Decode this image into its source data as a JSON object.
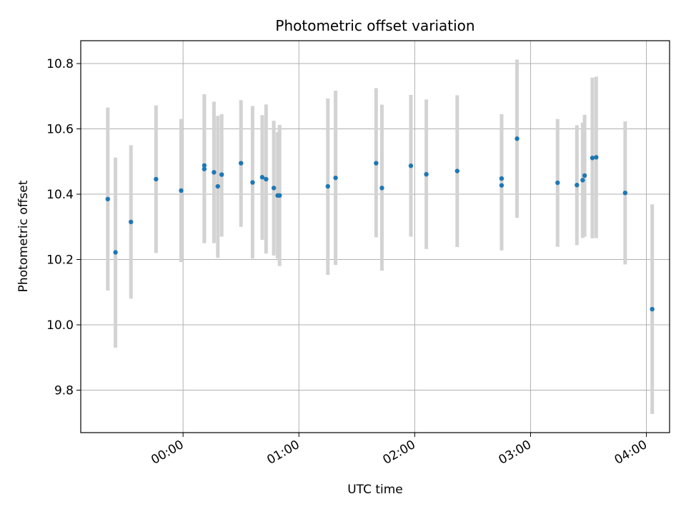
{
  "chart_data": {
    "type": "scatter",
    "title": "Photometric offset variation",
    "xlabel": "UTC time",
    "ylabel": "Photometric offset",
    "x_unit": "UTC time (HH:MM, starting at 23:00 of the previous day)",
    "xlim": [
      "23:07",
      "04:12"
    ],
    "ylim": [
      9.67,
      10.87
    ],
    "grid": true,
    "x_ticks": [
      "00:00",
      "01:00",
      "02:00",
      "03:00",
      "04:00"
    ],
    "y_ticks": [
      9.8,
      10.0,
      10.2,
      10.4,
      10.6,
      10.8
    ],
    "marker_color": "#1f77b4",
    "errorbar_color": "#d3d3d3",
    "points": [
      {
        "time": "23:21",
        "y": 10.385,
        "err_lo": 10.105,
        "err_hi": 10.665
      },
      {
        "time": "23:25",
        "y": 10.222,
        "err_lo": 9.93,
        "err_hi": 10.512
      },
      {
        "time": "23:33",
        "y": 10.315,
        "err_lo": 10.08,
        "err_hi": 10.55
      },
      {
        "time": "23:46",
        "y": 10.446,
        "err_lo": 10.22,
        "err_hi": 10.672
      },
      {
        "time": "23:59",
        "y": 10.411,
        "err_lo": 10.192,
        "err_hi": 10.63
      },
      {
        "time": "00:11",
        "y": 10.488,
        "err_lo": 10.25,
        "err_hi": 10.706
      },
      {
        "time": "00:11",
        "y": 10.477,
        "err_lo": 10.25,
        "err_hi": 10.7
      },
      {
        "time": "00:16",
        "y": 10.467,
        "err_lo": 10.25,
        "err_hi": 10.683
      },
      {
        "time": "00:18",
        "y": 10.424,
        "err_lo": 10.205,
        "err_hi": 10.64
      },
      {
        "time": "00:20",
        "y": 10.46,
        "err_lo": 10.27,
        "err_hi": 10.645
      },
      {
        "time": "00:30",
        "y": 10.495,
        "err_lo": 10.3,
        "err_hi": 10.688
      },
      {
        "time": "00:36",
        "y": 10.436,
        "err_lo": 10.203,
        "err_hi": 10.67
      },
      {
        "time": "00:41",
        "y": 10.452,
        "err_lo": 10.26,
        "err_hi": 10.642
      },
      {
        "time": "00:43",
        "y": 10.446,
        "err_lo": 10.218,
        "err_hi": 10.675
      },
      {
        "time": "00:47",
        "y": 10.419,
        "err_lo": 10.212,
        "err_hi": 10.625
      },
      {
        "time": "00:49",
        "y": 10.396,
        "err_lo": 10.203,
        "err_hi": 10.59
      },
      {
        "time": "00:50",
        "y": 10.396,
        "err_lo": 10.18,
        "err_hi": 10.612
      },
      {
        "time": "01:15",
        "y": 10.424,
        "err_lo": 10.153,
        "err_hi": 10.693
      },
      {
        "time": "01:19",
        "y": 10.45,
        "err_lo": 10.183,
        "err_hi": 10.717
      },
      {
        "time": "01:40",
        "y": 10.495,
        "err_lo": 10.268,
        "err_hi": 10.725
      },
      {
        "time": "01:43",
        "y": 10.419,
        "err_lo": 10.166,
        "err_hi": 10.674
      },
      {
        "time": "01:58",
        "y": 10.487,
        "err_lo": 10.27,
        "err_hi": 10.704
      },
      {
        "time": "02:06",
        "y": 10.461,
        "err_lo": 10.232,
        "err_hi": 10.69
      },
      {
        "time": "02:22",
        "y": 10.471,
        "err_lo": 10.238,
        "err_hi": 10.703
      },
      {
        "time": "02:45",
        "y": 10.448,
        "err_lo": 10.248,
        "err_hi": 10.645
      },
      {
        "time": "02:45",
        "y": 10.427,
        "err_lo": 10.228,
        "err_hi": 10.63
      },
      {
        "time": "02:53",
        "y": 10.57,
        "err_lo": 10.328,
        "err_hi": 10.812
      },
      {
        "time": "03:14",
        "y": 10.435,
        "err_lo": 10.239,
        "err_hi": 10.63
      },
      {
        "time": "03:24",
        "y": 10.428,
        "err_lo": 10.244,
        "err_hi": 10.611
      },
      {
        "time": "03:27",
        "y": 10.443,
        "err_lo": 10.266,
        "err_hi": 10.619
      },
      {
        "time": "03:28",
        "y": 10.457,
        "err_lo": 10.27,
        "err_hi": 10.643
      },
      {
        "time": "03:32",
        "y": 10.511,
        "err_lo": 10.265,
        "err_hi": 10.757
      },
      {
        "time": "03:34",
        "y": 10.513,
        "err_lo": 10.266,
        "err_hi": 10.76
      },
      {
        "time": "03:49",
        "y": 10.404,
        "err_lo": 10.185,
        "err_hi": 10.623
      },
      {
        "time": "04:03",
        "y": 10.048,
        "err_lo": 9.727,
        "err_hi": 10.369
      }
    ]
  }
}
